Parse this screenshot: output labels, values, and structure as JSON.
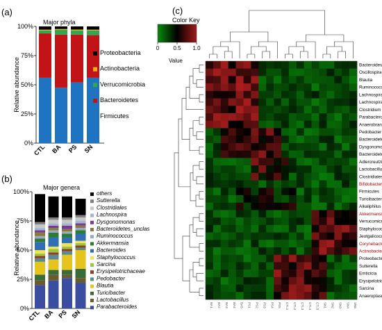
{
  "panel_labels": {
    "a": "(a)",
    "b": "(b)",
    "c": "(c)"
  },
  "chart_data": [
    {
      "type": "bar",
      "stacked": true,
      "title": "Major phyla",
      "ylabel": "Relative abundance",
      "ylim": [
        0,
        100
      ],
      "yticks": [
        "0%",
        "25%",
        "50%",
        "75%",
        "100%"
      ],
      "categories": [
        "CTL",
        "BA",
        "PS",
        "SN"
      ],
      "legend_position": "right",
      "series": [
        {
          "name": "Firmicutes",
          "color": "#1f74c2",
          "values": [
            56,
            47.5,
            52,
            56
          ]
        },
        {
          "name": "Bacteroidetes",
          "color": "#c21317",
          "values": [
            38,
            45.5,
            41,
            36.5
          ]
        },
        {
          "name": "Verrucomicrobia",
          "color": "#2fa84f",
          "values": [
            2.5,
            4,
            3.5,
            4
          ]
        },
        {
          "name": "Actinobacteria",
          "color": "#f2b21c",
          "values": [
            0.7,
            0.8,
            0.8,
            0.7
          ]
        },
        {
          "name": "Proteobacteria",
          "color": "#000000",
          "values": [
            2.8,
            2.2,
            2.7,
            2.8
          ]
        }
      ]
    },
    {
      "type": "bar",
      "stacked": true,
      "title": "Major genera",
      "ylabel": "Relative abundance",
      "ylim": [
        0,
        100
      ],
      "yticks": [
        "0%",
        "25%",
        "50%",
        "75%",
        "100%"
      ],
      "categories": [
        "CTL",
        "BA",
        "PS",
        "SN"
      ],
      "legend_position": "right",
      "series": [
        {
          "name": "Parabacteroides",
          "color": "#3b4da0",
          "values": [
            20,
            24,
            26,
            22
          ]
        },
        {
          "name": "Lactobacillus",
          "color": "#6b5a2e",
          "values": [
            4,
            5,
            3,
            4
          ]
        },
        {
          "name": "Turicibacter",
          "color": "#3a6c3a",
          "values": [
            5,
            4,
            4,
            8
          ]
        },
        {
          "name": "Blautia",
          "color": "#e5c51d",
          "values": [
            11,
            9,
            13,
            16
          ]
        },
        {
          "name": "Pedobacter",
          "color": "#5a8a96",
          "values": [
            3,
            4,
            3,
            2
          ]
        },
        {
          "name": "Erysipelotrichaceae",
          "color": "#8c3f22",
          "values": [
            2,
            2,
            2,
            2
          ]
        },
        {
          "name": "Sarcina",
          "color": "#9dc43e",
          "values": [
            2,
            3,
            2,
            2
          ]
        },
        {
          "name": "Staphylococcus",
          "color": "#eee25a",
          "values": [
            3,
            2,
            3,
            2
          ]
        },
        {
          "name": "Bacteroides",
          "color": "#2f6fb4",
          "values": [
            7,
            8,
            5,
            6
          ]
        },
        {
          "name": "Akkermansia",
          "color": "#2e7b32",
          "values": [
            3,
            4,
            3,
            3
          ]
        },
        {
          "name": "Ruminococcus",
          "color": "#9ba8c8",
          "values": [
            2,
            2,
            2,
            2
          ]
        },
        {
          "name": "Bacteroidetes_unclas",
          "color": "#8a7a3c",
          "values": [
            3,
            2,
            2,
            2
          ]
        },
        {
          "name": "Dysgonomonas",
          "color": "#7b3a8e",
          "values": [
            2,
            2,
            3,
            2
          ]
        },
        {
          "name": "Lachnospira",
          "color": "#9fb7d3",
          "values": [
            2,
            2,
            2,
            2
          ]
        },
        {
          "name": "Clostridiales",
          "color": "#c7c7c7",
          "values": [
            3,
            3,
            3,
            3
          ]
        },
        {
          "name": "Sutterella",
          "color": "#808080",
          "values": [
            2,
            2,
            2,
            2
          ]
        },
        {
          "name": "others",
          "color": "#000000",
          "values": [
            24,
            18,
            18,
            14
          ]
        }
      ]
    },
    {
      "type": "heatmap",
      "color_key": {
        "title": "Color Key",
        "xlabel": "Value",
        "ticks": [
          "0",
          "0.5",
          "1.0"
        ],
        "range": [
          0,
          1
        ],
        "colors": [
          "#0a8a0a",
          "#000000",
          "#a31a1a"
        ]
      },
      "row_labels": [
        "Bacteroides",
        "Oscillospira",
        "Blautia",
        "Ruminococcus",
        "Lachnospiraceae",
        "Lachnospira",
        "Clostridium",
        "Parabacteroides",
        "Anaerobranca",
        "Pedobacter",
        "Bacteroidetes_unclas",
        "Dysgonomonas",
        "Bacteroidetes",
        "Adlercreutzia",
        "Lactobacillus",
        "Clostridiales",
        "Bifidobacterium",
        "Firmicutes",
        "Turicibacter",
        "Alkaliphilus",
        "Akkermansia",
        "Verrucomicrobia",
        "Staphylococcus",
        "Jeotgalicoccus",
        "Corynebacterium",
        "Actinobacteria",
        "Proteobacteria",
        "Sutterella",
        "Emticicia",
        "Erysipelotrichaceae",
        "Sarcina",
        "Anaeroplasma"
      ],
      "row_label_colors": {
        "Bifidobacterium": "#b00000",
        "Akkermansia": "#b00000",
        "Corynebacterium": "#b00000",
        "Actinobacteria": "#b00000"
      },
      "column_labels": [
        "BA1",
        "BA2",
        "BA3",
        "BA4",
        "BA5",
        "PS1",
        "PS2",
        "PS3",
        "PS4",
        "PS5",
        "CTL1",
        "CTL2",
        "CTL3",
        "CTL4",
        "CTL5",
        "SN1",
        "SN2",
        "SN3",
        "SN4",
        "SN5"
      ],
      "clusters": [
        {
          "name": "Bacteroides",
          "cols": [
            0,
            6
          ],
          "pattern": "up"
        },
        {
          "name": "Pedobacter",
          "cols": [
            2,
            9
          ],
          "pattern": "up"
        },
        {
          "name": "Firmicutes",
          "cols": [
            6,
            10
          ],
          "pattern": "mixed"
        },
        {
          "name": "Akkermansia",
          "cols": [
            14,
            19
          ],
          "pattern": "up"
        },
        {
          "name": "Proteobacteria",
          "cols": [
            9,
            15
          ],
          "pattern": "up"
        }
      ]
    }
  ]
}
